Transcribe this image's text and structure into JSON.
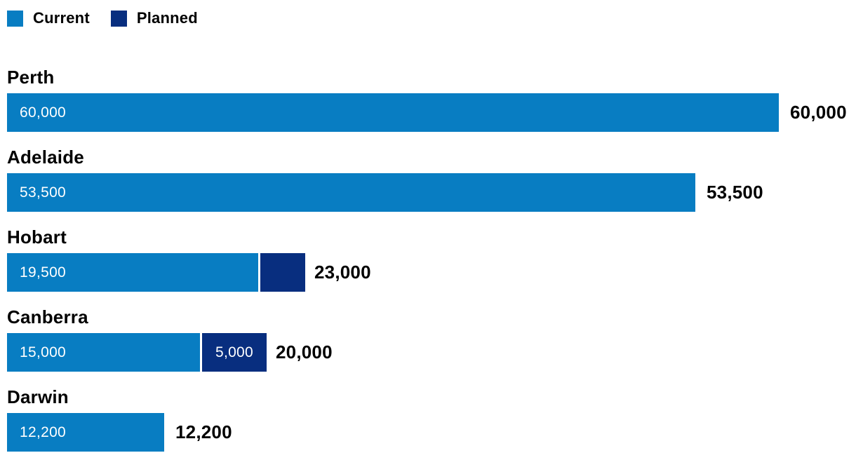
{
  "legend": {
    "items": [
      {
        "label": "Current",
        "color": "#087dc2"
      },
      {
        "label": "Planned",
        "color": "#082e7f"
      }
    ]
  },
  "chart_data": {
    "type": "bar",
    "orientation": "horizontal",
    "stacked": true,
    "title": "",
    "xlabel": "",
    "ylabel": "",
    "xlim": [
      0,
      60000
    ],
    "grid": false,
    "legend_position": "top-left",
    "value_labels": "inside-start",
    "total_labels": "after-bar-end",
    "categories": [
      "Perth",
      "Adelaide",
      "Hobart",
      "Canberra",
      "Darwin"
    ],
    "series": [
      {
        "name": "Current",
        "color": "#087dc2",
        "values": [
          60000,
          53500,
          19500,
          15000,
          12200
        ]
      },
      {
        "name": "Planned",
        "color": "#082e7f",
        "values": [
          0,
          0,
          3500,
          5000,
          0
        ]
      }
    ],
    "totals": [
      60000,
      53500,
      23000,
      20000,
      12200
    ]
  },
  "rows": [
    {
      "city": "Perth",
      "current": 60000,
      "current_label": "60,000",
      "planned": 0,
      "planned_label": "",
      "total_label": "60,000"
    },
    {
      "city": "Adelaide",
      "current": 53500,
      "current_label": "53,500",
      "planned": 0,
      "planned_label": "",
      "total_label": "53,500"
    },
    {
      "city": "Hobart",
      "current": 19500,
      "current_label": "19,500",
      "planned": 3500,
      "planned_label": "",
      "total_label": "23,000"
    },
    {
      "city": "Canberra",
      "current": 15000,
      "current_label": "15,000",
      "planned": 5000,
      "planned_label": "5,000",
      "total_label": "20,000"
    },
    {
      "city": "Darwin",
      "current": 12200,
      "current_label": "12,200",
      "planned": 0,
      "planned_label": "",
      "total_label": "12,200"
    }
  ]
}
